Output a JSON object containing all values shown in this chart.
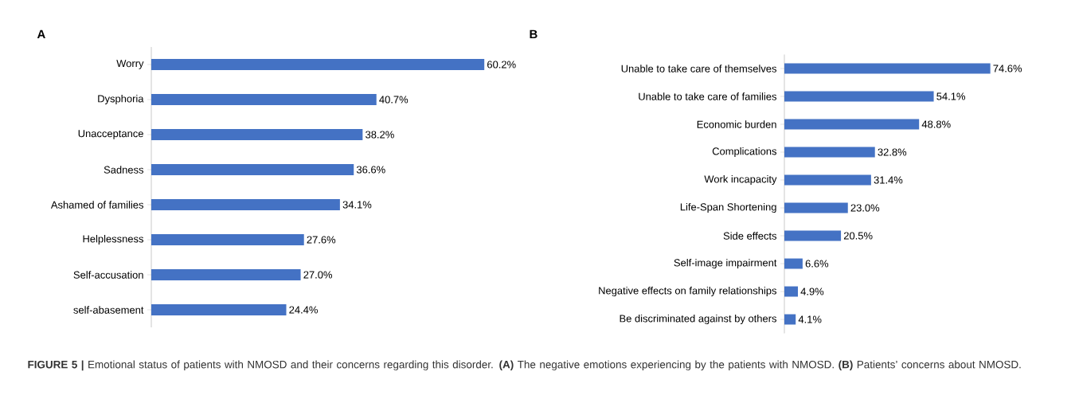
{
  "chart_data": [
    {
      "type": "bar",
      "orientation": "horizontal",
      "title": "A",
      "categories": [
        "Worry",
        "Dysphoria",
        "Unacceptance",
        "Sadness",
        "Ashamed of families",
        "Helplessness",
        "Self-accusation",
        "self-abasement"
      ],
      "values": [
        60.2,
        40.7,
        38.2,
        36.6,
        34.1,
        27.6,
        27.0,
        24.4
      ],
      "value_labels": [
        "60.2%",
        "40.7%",
        "38.2%",
        "36.6%",
        "34.1%",
        "27.6%",
        "27.0%",
        "24.4%"
      ],
      "color": "#4472c4"
    },
    {
      "type": "bar",
      "orientation": "horizontal",
      "title": "B",
      "categories": [
        "Unable to take care of themselves",
        "Unable to take care of families",
        "Economic burden",
        "Complications",
        "Work incapacity",
        "Life-Span Shortening",
        "Side effects",
        "Self-image impairment",
        "Negative effects on family relationships",
        "Be discriminated against by others"
      ],
      "values": [
        74.6,
        54.1,
        48.8,
        32.8,
        31.4,
        23.0,
        20.5,
        6.6,
        4.9,
        4.1
      ],
      "value_labels": [
        "74.6%",
        "54.1%",
        "48.8%",
        "32.8%",
        "31.4%",
        "23.0%",
        "20.5%",
        "6.6%",
        "4.9%",
        "4.1%"
      ],
      "color": "#4472c4",
      "annotations": [
        "**FIGURE 5 |** Emotional status of patients with NMOSD and their concerns regarding this disorder. **(A)** The negative emotions experiencing by the patients with NMOSD. **(B)** Patients’ concerns about NMOSD."
      ]
    }
  ]
}
